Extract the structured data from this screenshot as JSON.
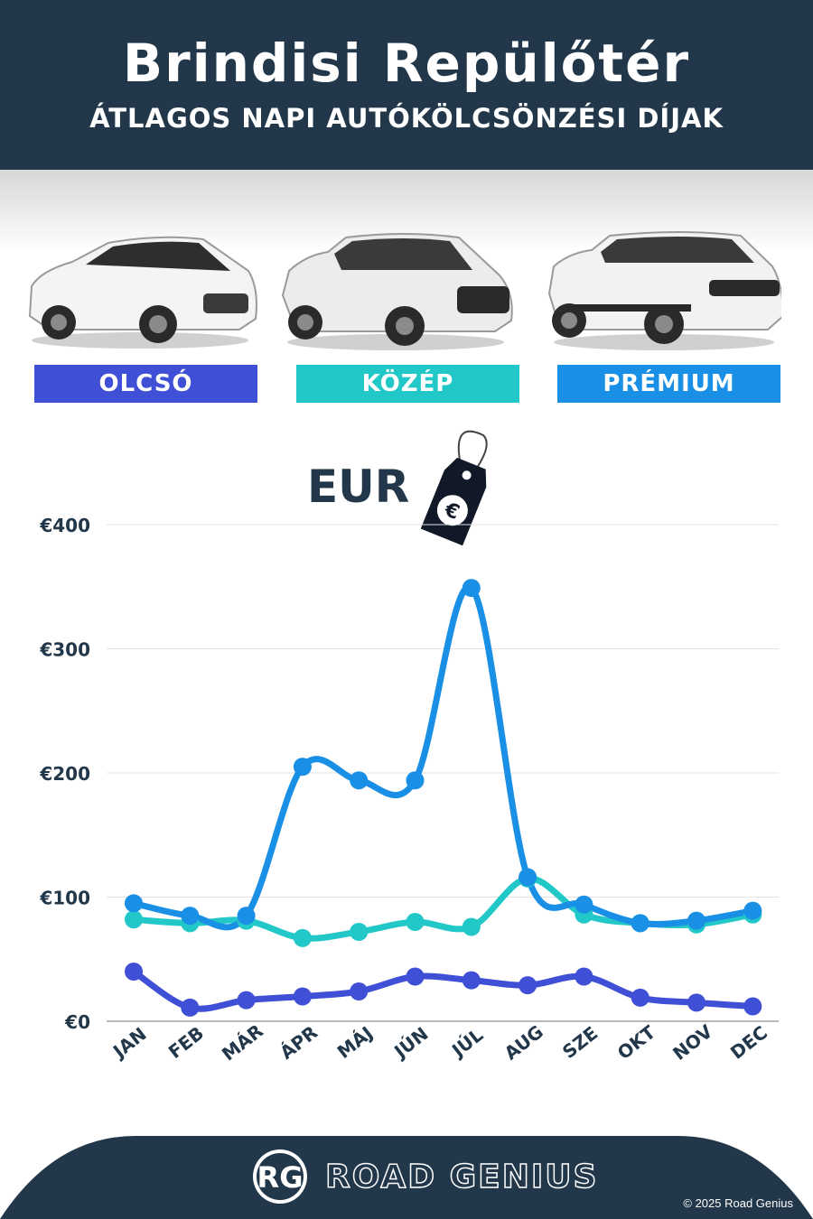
{
  "header": {
    "title": "Brindisi Repülőtér",
    "subtitle": "ÁTLAGOS NAPI AUTÓKÖLCSÖNZÉSI DÍJAK"
  },
  "categories": {
    "economy": {
      "label": "OLCSÓ",
      "color": "#3f4fd6"
    },
    "mid": {
      "label": "KÖZÉP",
      "color": "#22c8c8"
    },
    "premium": {
      "label": "PRÉMIUM",
      "color": "#1a8fe6"
    }
  },
  "currency_label": "EUR",
  "currency_symbol": "€",
  "chart_data": {
    "type": "line",
    "categories": [
      "JAN",
      "FEB",
      "MÁR",
      "ÁPR",
      "MÁJ",
      "JÚN",
      "JÚL",
      "AUG",
      "SZE",
      "OKT",
      "NOV",
      "DEC"
    ],
    "y_ticks": [
      "€0",
      "€100",
      "€200",
      "€300",
      "€400"
    ],
    "ylim": [
      0,
      400
    ],
    "grid": true,
    "series": [
      {
        "name": "OLCSÓ",
        "color": "#3f4fd6",
        "values": [
          40,
          11,
          17,
          20,
          24,
          36,
          33,
          29,
          36,
          19,
          15,
          12
        ]
      },
      {
        "name": "KÖZÉP",
        "color": "#22c8c8",
        "values": [
          82,
          79,
          81,
          67,
          72,
          80,
          76,
          115,
          86,
          79,
          78,
          86
        ]
      },
      {
        "name": "PRÉMIUM",
        "color": "#1a8fe6",
        "values": [
          95,
          85,
          85,
          205,
          194,
          194,
          349,
          116,
          94,
          79,
          81,
          89
        ]
      }
    ]
  },
  "footer": {
    "logo_initials": "RG",
    "brand": "ROAD GENIUS",
    "copyright": "© 2025 Road Genius"
  }
}
